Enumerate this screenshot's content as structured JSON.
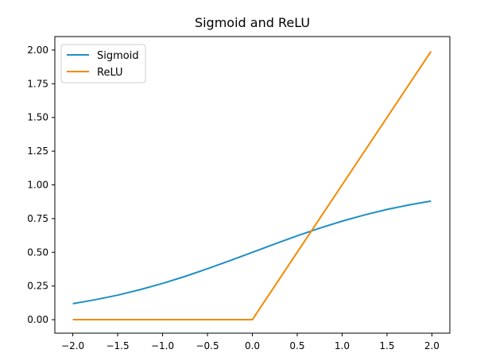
{
  "chart_data": {
    "type": "line",
    "title": "Sigmoid and ReLU",
    "xlabel": "",
    "ylabel": "",
    "xlim": [
      -2.2,
      2.2
    ],
    "ylim": [
      -0.1,
      2.1
    ],
    "x_ticks": [
      -2.0,
      -1.5,
      -1.0,
      -0.5,
      0.0,
      0.5,
      1.0,
      1.5,
      2.0
    ],
    "x_tick_labels": [
      "−2.0",
      "−1.5",
      "−1.0",
      "−0.5",
      "0.0",
      "0.5",
      "1.0",
      "1.5",
      "2.0"
    ],
    "y_ticks": [
      0.0,
      0.25,
      0.5,
      0.75,
      1.0,
      1.25,
      1.5,
      1.75,
      2.0
    ],
    "y_tick_labels": [
      "0.00",
      "0.25",
      "0.50",
      "0.75",
      "1.00",
      "1.25",
      "1.50",
      "1.75",
      "2.00"
    ],
    "grid": false,
    "legend_position": "top-left",
    "series": [
      {
        "name": "Sigmoid",
        "color": "#1f8fc4",
        "x": [
          -2.0,
          -1.75,
          -1.5,
          -1.25,
          -1.0,
          -0.75,
          -0.5,
          -0.25,
          0.0,
          0.25,
          0.5,
          0.75,
          1.0,
          1.25,
          1.5,
          1.75,
          1.99
        ],
        "y": [
          0.119,
          0.148,
          0.182,
          0.223,
          0.269,
          0.321,
          0.378,
          0.438,
          0.5,
          0.562,
          0.622,
          0.679,
          0.731,
          0.777,
          0.818,
          0.852,
          0.88
        ]
      },
      {
        "name": "ReLU",
        "color": "#f28b00",
        "x": [
          -2.0,
          0.0,
          1.99
        ],
        "y": [
          0.0,
          0.0,
          1.99
        ]
      }
    ]
  }
}
